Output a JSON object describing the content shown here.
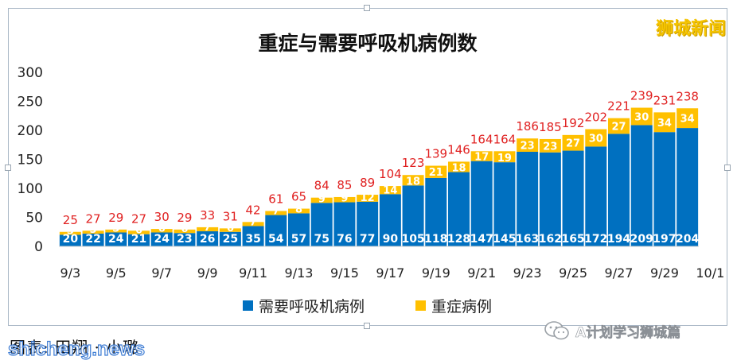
{
  "brand": "狮城新闻",
  "credit": "图表:   田翔 · 小璐",
  "site_watermark": "shicheng.news",
  "wechat_account": "A计划学习狮城篇",
  "wechat_icon": "wechat-icon",
  "colors": {
    "ventilator": "#0070c0",
    "icu": "#ffc000",
    "total": "#e02020",
    "title": "#111111"
  },
  "chart_data": {
    "type": "bar",
    "stacked": true,
    "title": "重症与需要呼吸机病例数",
    "xlabel": "",
    "ylabel": "",
    "ylim": [
      0,
      300
    ],
    "yticks": [
      0,
      50,
      100,
      150,
      200,
      250,
      300
    ],
    "grid": false,
    "legend_position": "bottom",
    "categories": [
      "9/3",
      "9/4",
      "9/5",
      "9/6",
      "9/7",
      "9/8",
      "9/9",
      "9/10",
      "9/11",
      "9/12",
      "9/13",
      "9/14",
      "9/15",
      "9/16",
      "9/17",
      "9/18",
      "9/19",
      "9/20",
      "9/21",
      "9/22",
      "9/23",
      "9/24",
      "9/25",
      "9/26",
      "9/27",
      "9/28",
      "9/29",
      "9/30"
    ],
    "xtick_labels": [
      "9/3",
      "9/5",
      "9/7",
      "9/9",
      "9/11",
      "9/13",
      "9/15",
      "9/17",
      "9/19",
      "9/21",
      "9/23",
      "9/25",
      "9/27",
      "9/29",
      "10/1"
    ],
    "series": [
      {
        "name": "需要呼吸机病例",
        "values": [
          20,
          22,
          24,
          21,
          24,
          23,
          26,
          25,
          35,
          54,
          57,
          75,
          76,
          77,
          90,
          105,
          118,
          128,
          147,
          145,
          163,
          162,
          165,
          172,
          194,
          209,
          197,
          204
        ]
      },
      {
        "name": "重症病例",
        "values": [
          5,
          5,
          5,
          6,
          6,
          6,
          7,
          6,
          7,
          7,
          8,
          9,
          9,
          12,
          14,
          18,
          21,
          18,
          17,
          19,
          23,
          23,
          27,
          30,
          27,
          30,
          34,
          34
        ]
      }
    ],
    "totals": [
      25,
      27,
      29,
      27,
      30,
      29,
      33,
      31,
      42,
      61,
      65,
      84,
      85,
      89,
      104,
      123,
      139,
      146,
      164,
      164,
      186,
      185,
      192,
      202,
      221,
      239,
      231,
      238
    ]
  }
}
